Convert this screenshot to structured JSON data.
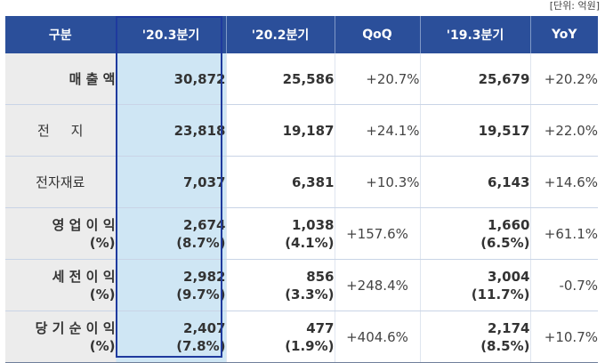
{
  "unit_note": "[단위: 억원]",
  "headers": [
    "구분",
    "'20.3분기",
    "'20.2분기",
    "QoQ",
    "'19.3분기",
    "YoY"
  ],
  "rows": [
    {
      "label": "매 출 액",
      "label2": "",
      "cur": "30,872",
      "cur2": "",
      "prev": "25,586",
      "prev2": "",
      "qoq": "+20.7%",
      "ly": "25,679",
      "ly2": "",
      "yoy": "+20.2%"
    },
    {
      "label": "전     지",
      "label2": "",
      "cur": "23,818",
      "cur2": "",
      "prev": "19,187",
      "prev2": "",
      "qoq": "+24.1%",
      "ly": "19,517",
      "ly2": "",
      "yoy": "+22.0%"
    },
    {
      "label": "전자재료",
      "label2": "",
      "cur": "7,037",
      "cur2": "",
      "prev": "6,381",
      "prev2": "",
      "qoq": "+10.3%",
      "ly": "6,143",
      "ly2": "",
      "yoy": "+14.6%"
    },
    {
      "label": "영 업 이 익",
      "label2": "(%)",
      "cur": "2,674",
      "cur2": "(8.7%)",
      "prev": "1,038",
      "prev2": "(4.1%)",
      "qoq": "+157.6%",
      "ly": "1,660",
      "ly2": "(6.5%)",
      "yoy": "+61.1%"
    },
    {
      "label": "세 전 이 익",
      "label2": "(%)",
      "cur": "2,982",
      "cur2": "(9.7%)",
      "prev": "856",
      "prev2": "(3.3%)",
      "qoq": "+248.4%",
      "ly": "3,004",
      "ly2": "(11.7%)",
      "yoy": "-0.7%"
    },
    {
      "label": "당 기 순 이 익",
      "label2": "(%)",
      "cur": "2,407",
      "cur2": "(7.8%)",
      "prev": "477",
      "prev2": "(1.9%)",
      "qoq": "+404.6%",
      "ly": "2,174",
      "ly2": "(8.5%)",
      "yoy": "+10.7%"
    }
  ]
}
